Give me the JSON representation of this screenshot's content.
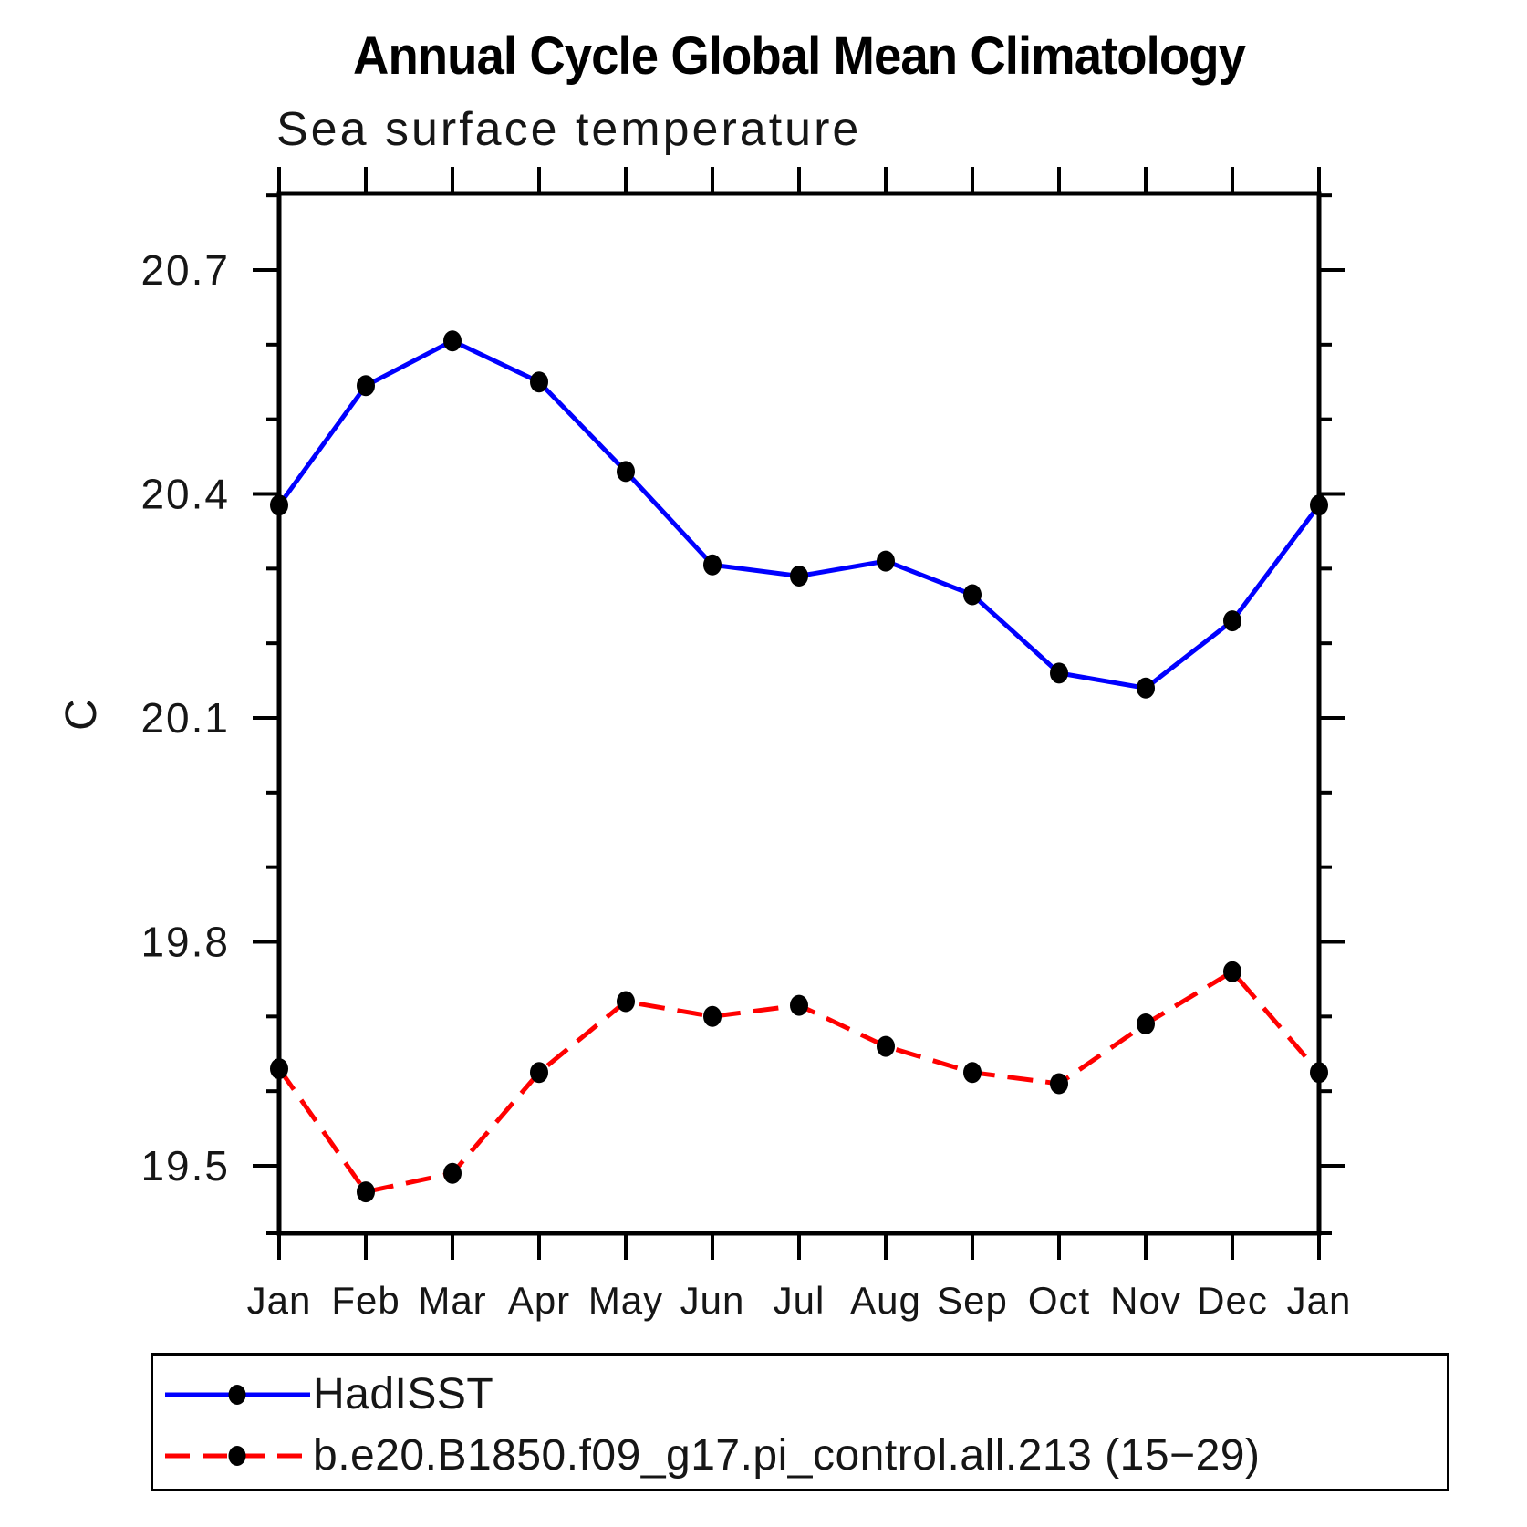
{
  "chart_data": {
    "type": "line",
    "title": "Annual Cycle Global Mean Climatology",
    "subtitle": "Sea surface temperature",
    "ylabel": "C",
    "categories": [
      "Jan",
      "Feb",
      "Mar",
      "Apr",
      "May",
      "Jun",
      "Jul",
      "Aug",
      "Sep",
      "Oct",
      "Nov",
      "Dec",
      "Jan"
    ],
    "series": [
      {
        "name": "HadISST",
        "color": "#0000ff",
        "style": "solid",
        "marker": "filled-circle",
        "marker_color": "#000000",
        "values": [
          20.385,
          20.545,
          20.605,
          20.55,
          20.43,
          20.305,
          20.29,
          20.31,
          20.265,
          20.16,
          20.14,
          20.23,
          20.385
        ]
      },
      {
        "name": "b.e20.B1850.f09_g17.pi_control.all.213 (15−29)",
        "color": "#ff0000",
        "style": "dashed",
        "marker": "filled-circle",
        "marker_color": "#000000",
        "values": [
          19.63,
          19.465,
          19.49,
          19.625,
          19.72,
          19.7,
          19.715,
          19.66,
          19.625,
          19.61,
          19.69,
          19.76,
          19.625
        ]
      }
    ],
    "yaxis": {
      "tick_values": [
        20.7,
        20.4,
        20.1,
        19.8,
        19.5
      ],
      "tick_labels": [
        "20.7",
        "20.4",
        "20.1",
        "19.8",
        "19.5"
      ],
      "minor_step": 0.1,
      "ylim": [
        19.41,
        20.8
      ]
    },
    "xaxis": {
      "ticks_per_month": true
    },
    "legend_position": "bottom-left",
    "grid": false,
    "frame_color": "#000000"
  }
}
